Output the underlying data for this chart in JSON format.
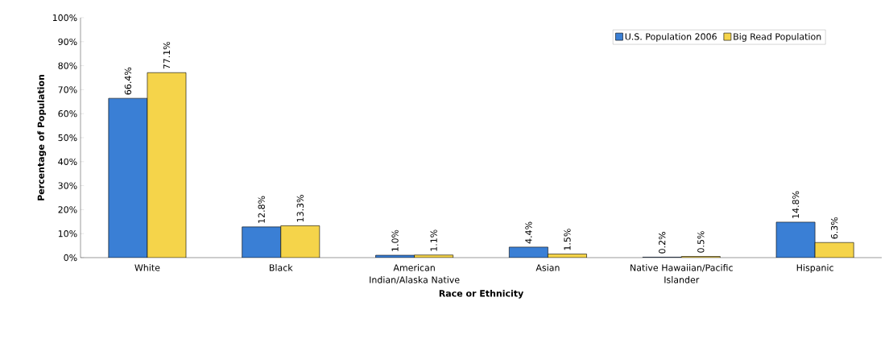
{
  "chart_data": {
    "type": "bar",
    "xlabel": "Race or Ethnicity",
    "ylabel": "Percentage of Population",
    "categories": [
      "White",
      "Black",
      "American Indian/Alaska Native",
      "Asian",
      "Native Hawaiian/Pacific Islander",
      "Hispanic"
    ],
    "series": [
      {
        "name": "U.S. Population 2006",
        "color": "#3a7fd5",
        "values": [
          66.4,
          12.8,
          1.0,
          4.4,
          0.2,
          14.8
        ],
        "value_labels": [
          "66.4%",
          "12.8%",
          "1.0%",
          "4.4%",
          "0.2%",
          "14.8%"
        ]
      },
      {
        "name": "Big Read Population",
        "color": "#f5d44a",
        "values": [
          77.1,
          13.3,
          1.1,
          1.5,
          0.5,
          6.3
        ],
        "value_labels": [
          "77.1%",
          "13.3%",
          "1.1%",
          "1.5%",
          "0.5%",
          "6.3%"
        ]
      }
    ],
    "ylim": [
      0,
      100
    ],
    "yticks": [
      {
        "value": 0,
        "label": "0%"
      },
      {
        "value": 10,
        "label": "10%"
      },
      {
        "value": 20,
        "label": "20%"
      },
      {
        "value": 30,
        "label": "30%"
      },
      {
        "value": 40,
        "label": "40%"
      },
      {
        "value": 50,
        "label": "50%"
      },
      {
        "value": 60,
        "label": "60%"
      },
      {
        "value": 70,
        "label": "70%"
      },
      {
        "value": 80,
        "label": "80%"
      },
      {
        "value": 90,
        "label": "90%"
      },
      {
        "value": 100,
        "label": "100%"
      }
    ],
    "legend": "top right"
  }
}
